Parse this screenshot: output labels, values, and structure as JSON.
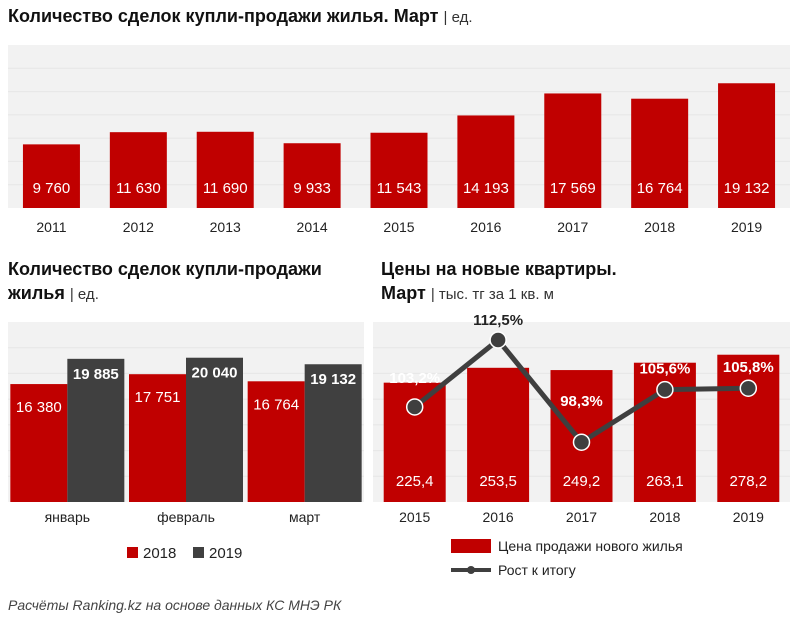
{
  "colors": {
    "red": "#c00000",
    "dark": "#404040",
    "line": "#3f3f3f",
    "grid": "#e6e6e6",
    "plot_bg": "#f2f2f2"
  },
  "chart1": {
    "title": "Количество сделок купли-продажи жилья.",
    "title_bold2": "Март",
    "unit": "| ед."
  },
  "chart2": {
    "title_line1": "Количество сделок купли-продажи",
    "title_line2": "жилья",
    "unit": "| ед."
  },
  "chart3": {
    "title_line1": "Цены на новые квартиры.",
    "title_line2": "Март",
    "unit": "| тыс. тг за 1 кв. м"
  },
  "footnote": "Расчёты Ranking.kz на основе данных КС МНЭ РК",
  "chart_data": [
    {
      "type": "bar",
      "title": "Количество сделок купли-продажи жилья. Март | ед.",
      "categories": [
        "2011",
        "2012",
        "2013",
        "2014",
        "2015",
        "2016",
        "2017",
        "2018",
        "2019"
      ],
      "values": [
        9760,
        11630,
        11690,
        9933,
        11543,
        14193,
        17569,
        16764,
        19132
      ],
      "labels": [
        "9 760",
        "11 630",
        "11 690",
        "9 933",
        "11 543",
        "14 193",
        "17 569",
        "16 764",
        "19 132"
      ],
      "ylim": [
        0,
        25000
      ],
      "grid": true
    },
    {
      "type": "bar",
      "title": "Количество сделок купли-продажи жилья | ед.",
      "categories": [
        "январь",
        "февраль",
        "март"
      ],
      "series": [
        {
          "name": "2018",
          "values": [
            16380,
            17751,
            16764
          ],
          "labels": [
            "16 380",
            "17 751",
            "16 764"
          ]
        },
        {
          "name": "2019",
          "values": [
            19885,
            20040,
            19132
          ],
          "labels": [
            "19 885",
            "20 040",
            "19 132"
          ]
        }
      ],
      "ylim": [
        0,
        25000
      ],
      "legend": "bottom",
      "grid": true
    },
    {
      "type": "bar",
      "title": "Цены на новые квартиры. Март | тыс. тг за 1 кв. м",
      "categories": [
        "2015",
        "2016",
        "2017",
        "2018",
        "2019"
      ],
      "series": [
        {
          "name": "Цена продажи нового жилья",
          "kind": "bar",
          "values": [
            225.4,
            253.5,
            249.2,
            263.1,
            278.2
          ],
          "labels": [
            "225,4",
            "253,5",
            "249,2",
            "263,1",
            "278,2"
          ]
        },
        {
          "name": "Рост к итогу",
          "kind": "line",
          "values": [
            103.2,
            112.5,
            98.3,
            105.6,
            105.8
          ],
          "labels": [
            "103,2%",
            "112,5%",
            "98,3%",
            "105,6%",
            "105,8%"
          ]
        }
      ],
      "ylim": [
        0,
        340
      ],
      "y2lim": [
        90,
        115
      ],
      "legend": "bottom",
      "grid": true
    }
  ]
}
